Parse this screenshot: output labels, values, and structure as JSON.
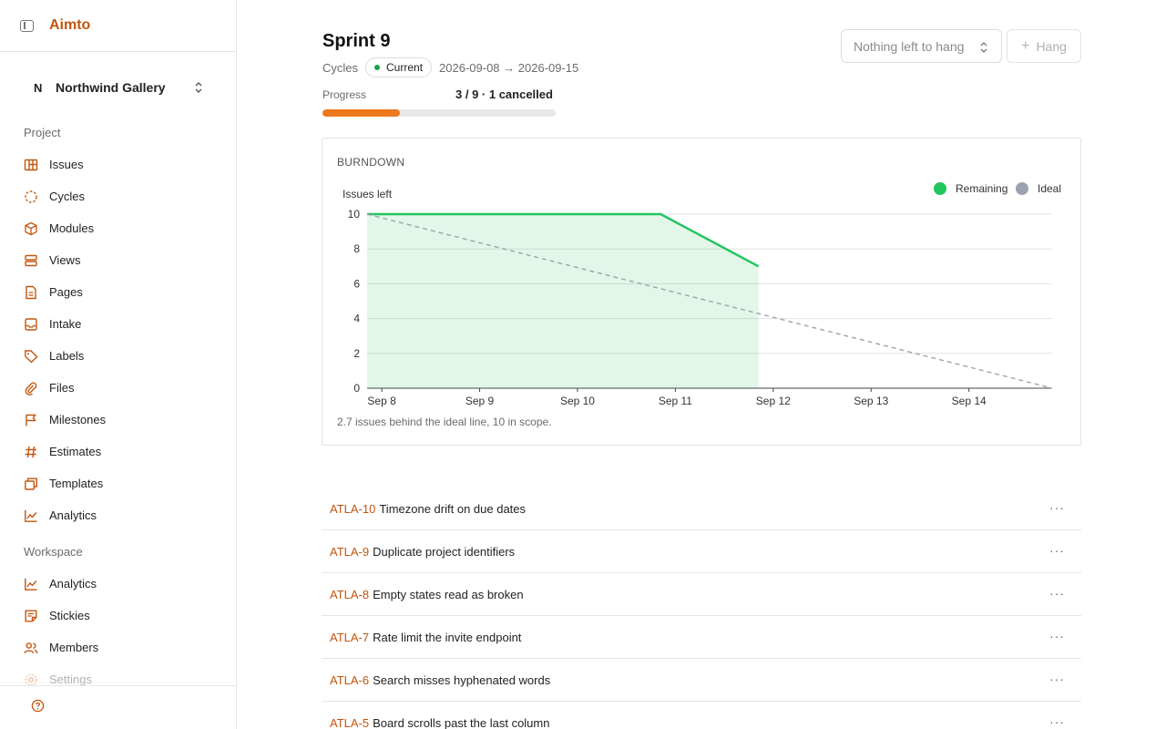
{
  "app": {
    "brand": "Aimto"
  },
  "workspace": {
    "letter": "N",
    "name": "Northwind Gallery"
  },
  "sidebar": {
    "project_title": "Project",
    "project_items": [
      {
        "label": "Issues",
        "icon": "issues-icon"
      },
      {
        "label": "Cycles",
        "icon": "cycles-icon"
      },
      {
        "label": "Modules",
        "icon": "modules-icon"
      },
      {
        "label": "Views",
        "icon": "views-icon"
      },
      {
        "label": "Pages",
        "icon": "pages-icon"
      },
      {
        "label": "Intake",
        "icon": "intake-icon"
      },
      {
        "label": "Labels",
        "icon": "labels-icon"
      },
      {
        "label": "Files",
        "icon": "files-icon"
      },
      {
        "label": "Milestones",
        "icon": "milestones-icon"
      },
      {
        "label": "Estimates",
        "icon": "estimates-icon"
      },
      {
        "label": "Templates",
        "icon": "templates-icon"
      },
      {
        "label": "Analytics",
        "icon": "analytics-icon"
      }
    ],
    "workspace_title": "Workspace",
    "workspace_items": [
      {
        "label": "Analytics",
        "icon": "analytics-icon"
      },
      {
        "label": "Stickies",
        "icon": "stickies-icon"
      },
      {
        "label": "Members",
        "icon": "members-icon"
      },
      {
        "label": "Settings",
        "icon": "settings-icon"
      }
    ]
  },
  "header": {
    "title": "Sprint 9",
    "breadcrumb": "Cycles",
    "status": "Current",
    "status_color": "#16a34a",
    "dates": "2026-09-08 → 2026-09-15",
    "progress_label": "Progress",
    "progress_value": "3 / 9 · 1 cancelled",
    "progress_fraction": 0.333,
    "accent": "#ec7a1c"
  },
  "toolbar": {
    "select_label": "Nothing left to hang",
    "hang_label": "Hang"
  },
  "chart_data": {
    "type": "line",
    "title": "BURNDOWN",
    "ylabel": "Issues left",
    "ylim": [
      0,
      10
    ],
    "yticks": [
      0,
      2,
      4,
      6,
      8,
      10
    ],
    "xticks": [
      "Sep 8",
      "Sep 9",
      "Sep 10",
      "Sep 11",
      "Sep 12",
      "Sep 13",
      "Sep 14"
    ],
    "xlim_days": [
      0,
      7
    ],
    "legend_position": "top-right",
    "series": [
      {
        "name": "Remaining",
        "color": "#22c55e",
        "points": [
          [
            0,
            10
          ],
          [
            3,
            10
          ],
          [
            4,
            7
          ]
        ]
      },
      {
        "name": "Ideal",
        "color": "#9ca3af",
        "points": [
          [
            0,
            10
          ],
          [
            7,
            0
          ]
        ]
      }
    ],
    "footnote": "2.7 issues behind the ideal line, 10 in scope."
  },
  "issues": [
    {
      "id": "ATLA-10",
      "title": "Timezone drift on due dates"
    },
    {
      "id": "ATLA-9",
      "title": "Duplicate project identifiers"
    },
    {
      "id": "ATLA-8",
      "title": "Empty states read as broken"
    },
    {
      "id": "ATLA-7",
      "title": "Rate limit the invite endpoint"
    },
    {
      "id": "ATLA-6",
      "title": "Search misses hyphenated words"
    },
    {
      "id": "ATLA-5",
      "title": "Board scrolls past the last column"
    }
  ],
  "more_label": "···"
}
